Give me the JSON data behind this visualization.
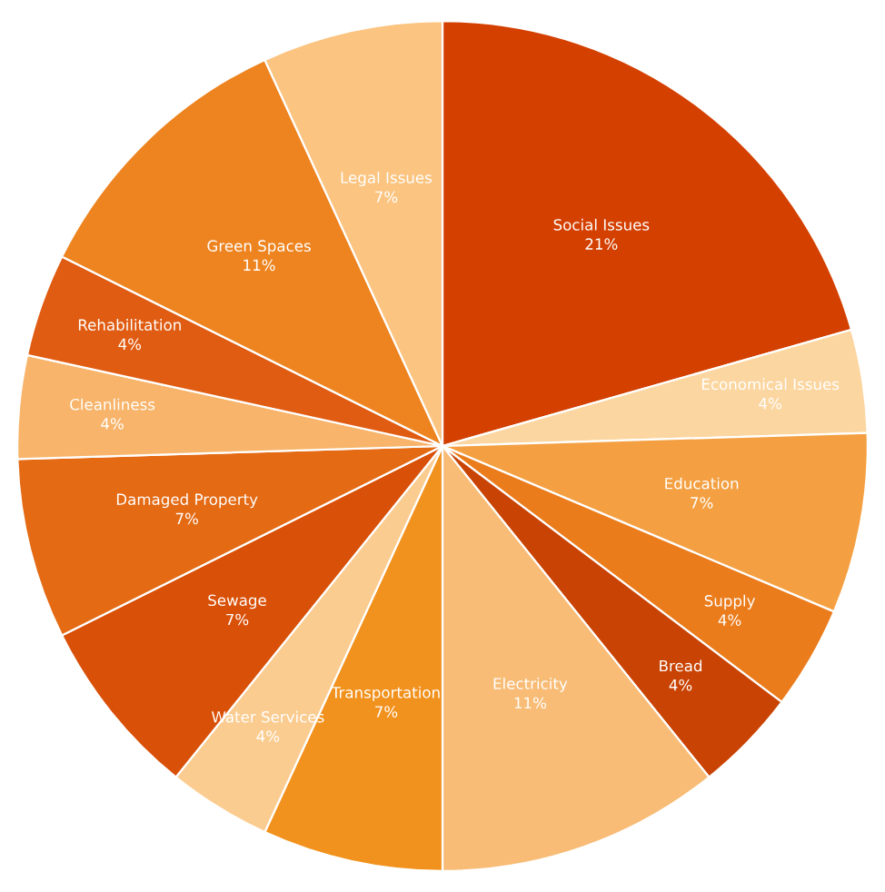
{
  "chart_data": {
    "type": "pie",
    "categories": [
      "Social Issues",
      "Economical Issues",
      "Education",
      "Supply",
      "Bread",
      "Electricity",
      "Transportation",
      "Water Services",
      "Sewage",
      "Damaged Property",
      "Cleanliness",
      "Rehabilitation",
      "Green Spaces",
      "Legal Issues"
    ],
    "values": [
      21,
      4,
      7,
      4,
      4,
      11,
      7,
      4,
      7,
      7,
      4,
      4,
      11,
      7
    ],
    "value_labels": [
      "21%",
      "4%",
      "7%",
      "4%",
      "4%",
      "11%",
      "7%",
      "4%",
      "7%",
      "7%",
      "4%",
      "4%",
      "11%",
      "7%"
    ],
    "colors": [
      "#d44000",
      "#fcd6a0",
      "#f4a042",
      "#eb7c1c",
      "#c94404",
      "#f8bc76",
      "#f2921e",
      "#fbcc90",
      "#d95008",
      "#e46a14",
      "#f7b46a",
      "#e05c12",
      "#ee8420",
      "#fbc480"
    ]
  }
}
